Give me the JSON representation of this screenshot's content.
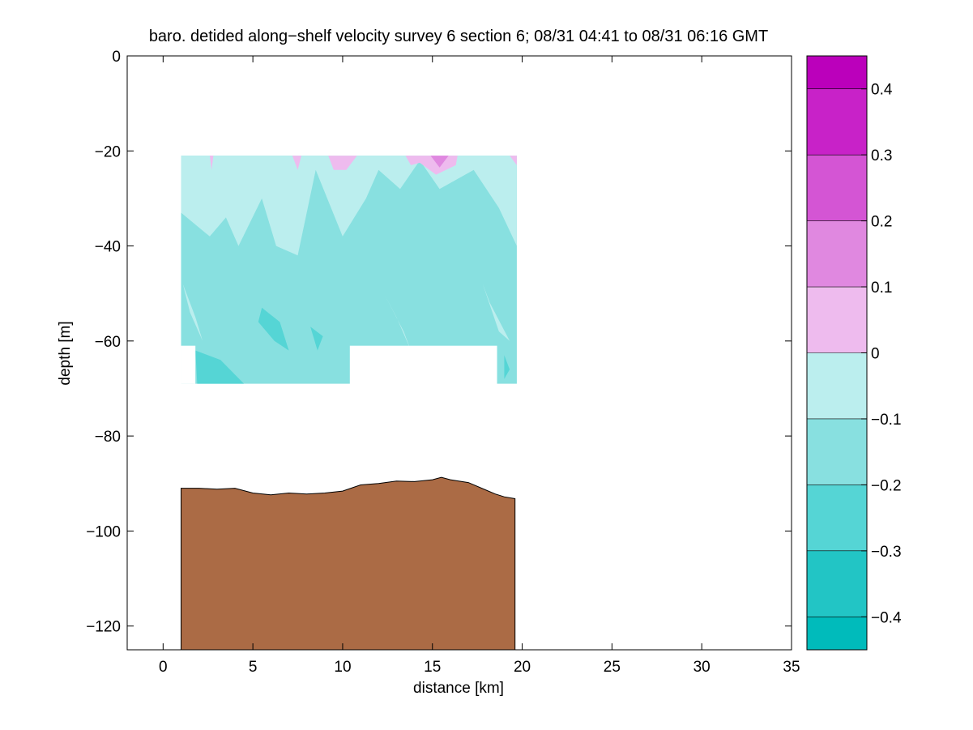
{
  "chart_data": {
    "type": "contour",
    "title": "baro. detided along−shelf velocity survey 6 section 6; 08/31 04:41 to 08/31 06:16 GMT",
    "xlabel": "distance [km]",
    "ylabel": "depth [m]",
    "xlim": [
      -2,
      35
    ],
    "ylim": [
      -125,
      0
    ],
    "xticks": [
      0,
      5,
      10,
      15,
      20,
      25,
      30,
      35
    ],
    "yticks": [
      0,
      -20,
      -40,
      -60,
      -80,
      -100,
      -120
    ],
    "xtick_labels": [
      "0",
      "5",
      "10",
      "15",
      "20",
      "25",
      "30",
      "35"
    ],
    "ytick_labels": [
      "0",
      "−20",
      "−40",
      "−60",
      "−80",
      "−100",
      "−120"
    ],
    "grid": false,
    "colorbar": {
      "levels": [
        -0.45,
        -0.4,
        -0.3,
        -0.2,
        -0.1,
        0,
        0.1,
        0.2,
        0.3,
        0.4,
        0.45
      ],
      "colors": [
        "#00bbbb",
        "#22c5c5",
        "#55d5d5",
        "#88e0e0",
        "#bbeeee",
        "#eebbee",
        "#e088e0",
        "#d455d4",
        "#c822c8",
        "#bb00bb"
      ],
      "ticks": [
        -0.4,
        -0.3,
        -0.2,
        -0.1,
        0,
        0.1,
        0.2,
        0.3,
        0.4
      ],
      "tick_labels": [
        "−0.4",
        "−0.3",
        "−0.2",
        "−0.1",
        "0",
        "0.1",
        "0.2",
        "0.3",
        "0.4"
      ]
    },
    "velocity_section": {
      "depth_range": [
        -21,
        -69
      ],
      "distance_range": [
        1.0,
        19.7
      ],
      "background_class": "-0.2 to -0.1",
      "regions": [
        {
          "class": "-0.1 to 0",
          "points": [
            [
              1,
              -21
            ],
            [
              19.7,
              -21
            ],
            [
              19.7,
              -40
            ],
            [
              18.7,
              -32
            ],
            [
              17.3,
              -24
            ],
            [
              15.4,
              -28
            ],
            [
              14.3,
              -22
            ],
            [
              13.2,
              -28
            ],
            [
              12,
              -24
            ],
            [
              11.3,
              -30
            ],
            [
              10,
              -38
            ],
            [
              8.5,
              -24
            ],
            [
              8,
              -33
            ],
            [
              7.5,
              -42
            ],
            [
              6.3,
              -40
            ],
            [
              5.5,
              -30
            ],
            [
              4.2,
              -40
            ],
            [
              3.5,
              -34
            ],
            [
              2.6,
              -38
            ],
            [
              1,
              -33
            ]
          ]
        },
        {
          "class": "-0.1 to 0",
          "points": [
            [
              12.3,
              -50
            ],
            [
              13,
              -55
            ],
            [
              13.8,
              -62
            ],
            [
              13.4,
              -58
            ]
          ]
        },
        {
          "class": "-0.1 to 0",
          "points": [
            [
              17.8,
              -48
            ],
            [
              18.7,
              -58
            ],
            [
              19.3,
              -60
            ],
            [
              18.2,
              -52
            ]
          ]
        },
        {
          "class": "-0.1 to 0",
          "points": [
            [
              1.1,
              -48
            ],
            [
              1.8,
              -55
            ],
            [
              2.2,
              -60
            ],
            [
              1.5,
              -54
            ]
          ]
        },
        {
          "class": "-0.3 to -0.2",
          "points": [
            [
              5.5,
              -53
            ],
            [
              6.5,
              -56
            ],
            [
              7.0,
              -62
            ],
            [
              6.2,
              -60
            ],
            [
              5.3,
              -56
            ]
          ]
        },
        {
          "class": "-0.3 to -0.2",
          "points": [
            [
              1.8,
              -62
            ],
            [
              3.2,
              -64
            ],
            [
              4.5,
              -69
            ],
            [
              1.9,
              -69
            ]
          ]
        },
        {
          "class": "-0.3 to -0.2",
          "points": [
            [
              19.0,
              -63
            ],
            [
              19.3,
              -66
            ],
            [
              19.0,
              -68
            ]
          ]
        },
        {
          "class": "-0.3 to -0.2",
          "points": [
            [
              8.2,
              -57
            ],
            [
              8.6,
              -62
            ],
            [
              8.9,
              -59
            ]
          ]
        },
        {
          "class": "0 to 0.1",
          "points": [
            [
              2.6,
              -21
            ],
            [
              2.8,
              -21
            ],
            [
              2.7,
              -24
            ]
          ]
        },
        {
          "class": "0 to 0.1",
          "points": [
            [
              7.2,
              -21
            ],
            [
              7.7,
              -21
            ],
            [
              7.5,
              -24
            ]
          ]
        },
        {
          "class": "0 to 0.1",
          "points": [
            [
              9.2,
              -21
            ],
            [
              10.8,
              -21
            ],
            [
              10.2,
              -24
            ],
            [
              9.5,
              -24
            ]
          ]
        },
        {
          "class": "0 to 0.1",
          "points": [
            [
              13.5,
              -21
            ],
            [
              16.4,
              -21
            ],
            [
              16.3,
              -23
            ],
            [
              15.2,
              -25
            ],
            [
              14.3,
              -22.5
            ],
            [
              13.8,
              -23
            ]
          ]
        },
        {
          "class": "0 to 0.1",
          "points": [
            [
              19.3,
              -21
            ],
            [
              19.7,
              -21
            ],
            [
              19.7,
              -23
            ]
          ]
        },
        {
          "class": "0.1 to 0.2",
          "points": [
            [
              14.9,
              -21
            ],
            [
              15.9,
              -21
            ],
            [
              15.4,
              -23.5
            ]
          ]
        }
      ],
      "blank_window": {
        "distance": [
          10.4,
          18.6
        ],
        "depth": [
          -61,
          -69
        ]
      }
    },
    "bathymetry": {
      "x": [
        1.0,
        2.0,
        3.0,
        4.0,
        5.0,
        6.0,
        7.0,
        8.0,
        9.0,
        10.0,
        11.0,
        12.0,
        13.0,
        14.0,
        15.0,
        15.5,
        16.0,
        17.0,
        18.0,
        18.5,
        19.0,
        19.6
      ],
      "depth": [
        -91.0,
        -91.0,
        -91.2,
        -91.0,
        -92.0,
        -92.4,
        -92.0,
        -92.2,
        -92.0,
        -91.6,
        -90.3,
        -90.0,
        -89.5,
        -89.6,
        -89.2,
        -88.7,
        -89.2,
        -89.8,
        -91.4,
        -92.2,
        -92.8,
        -93.2
      ]
    }
  }
}
